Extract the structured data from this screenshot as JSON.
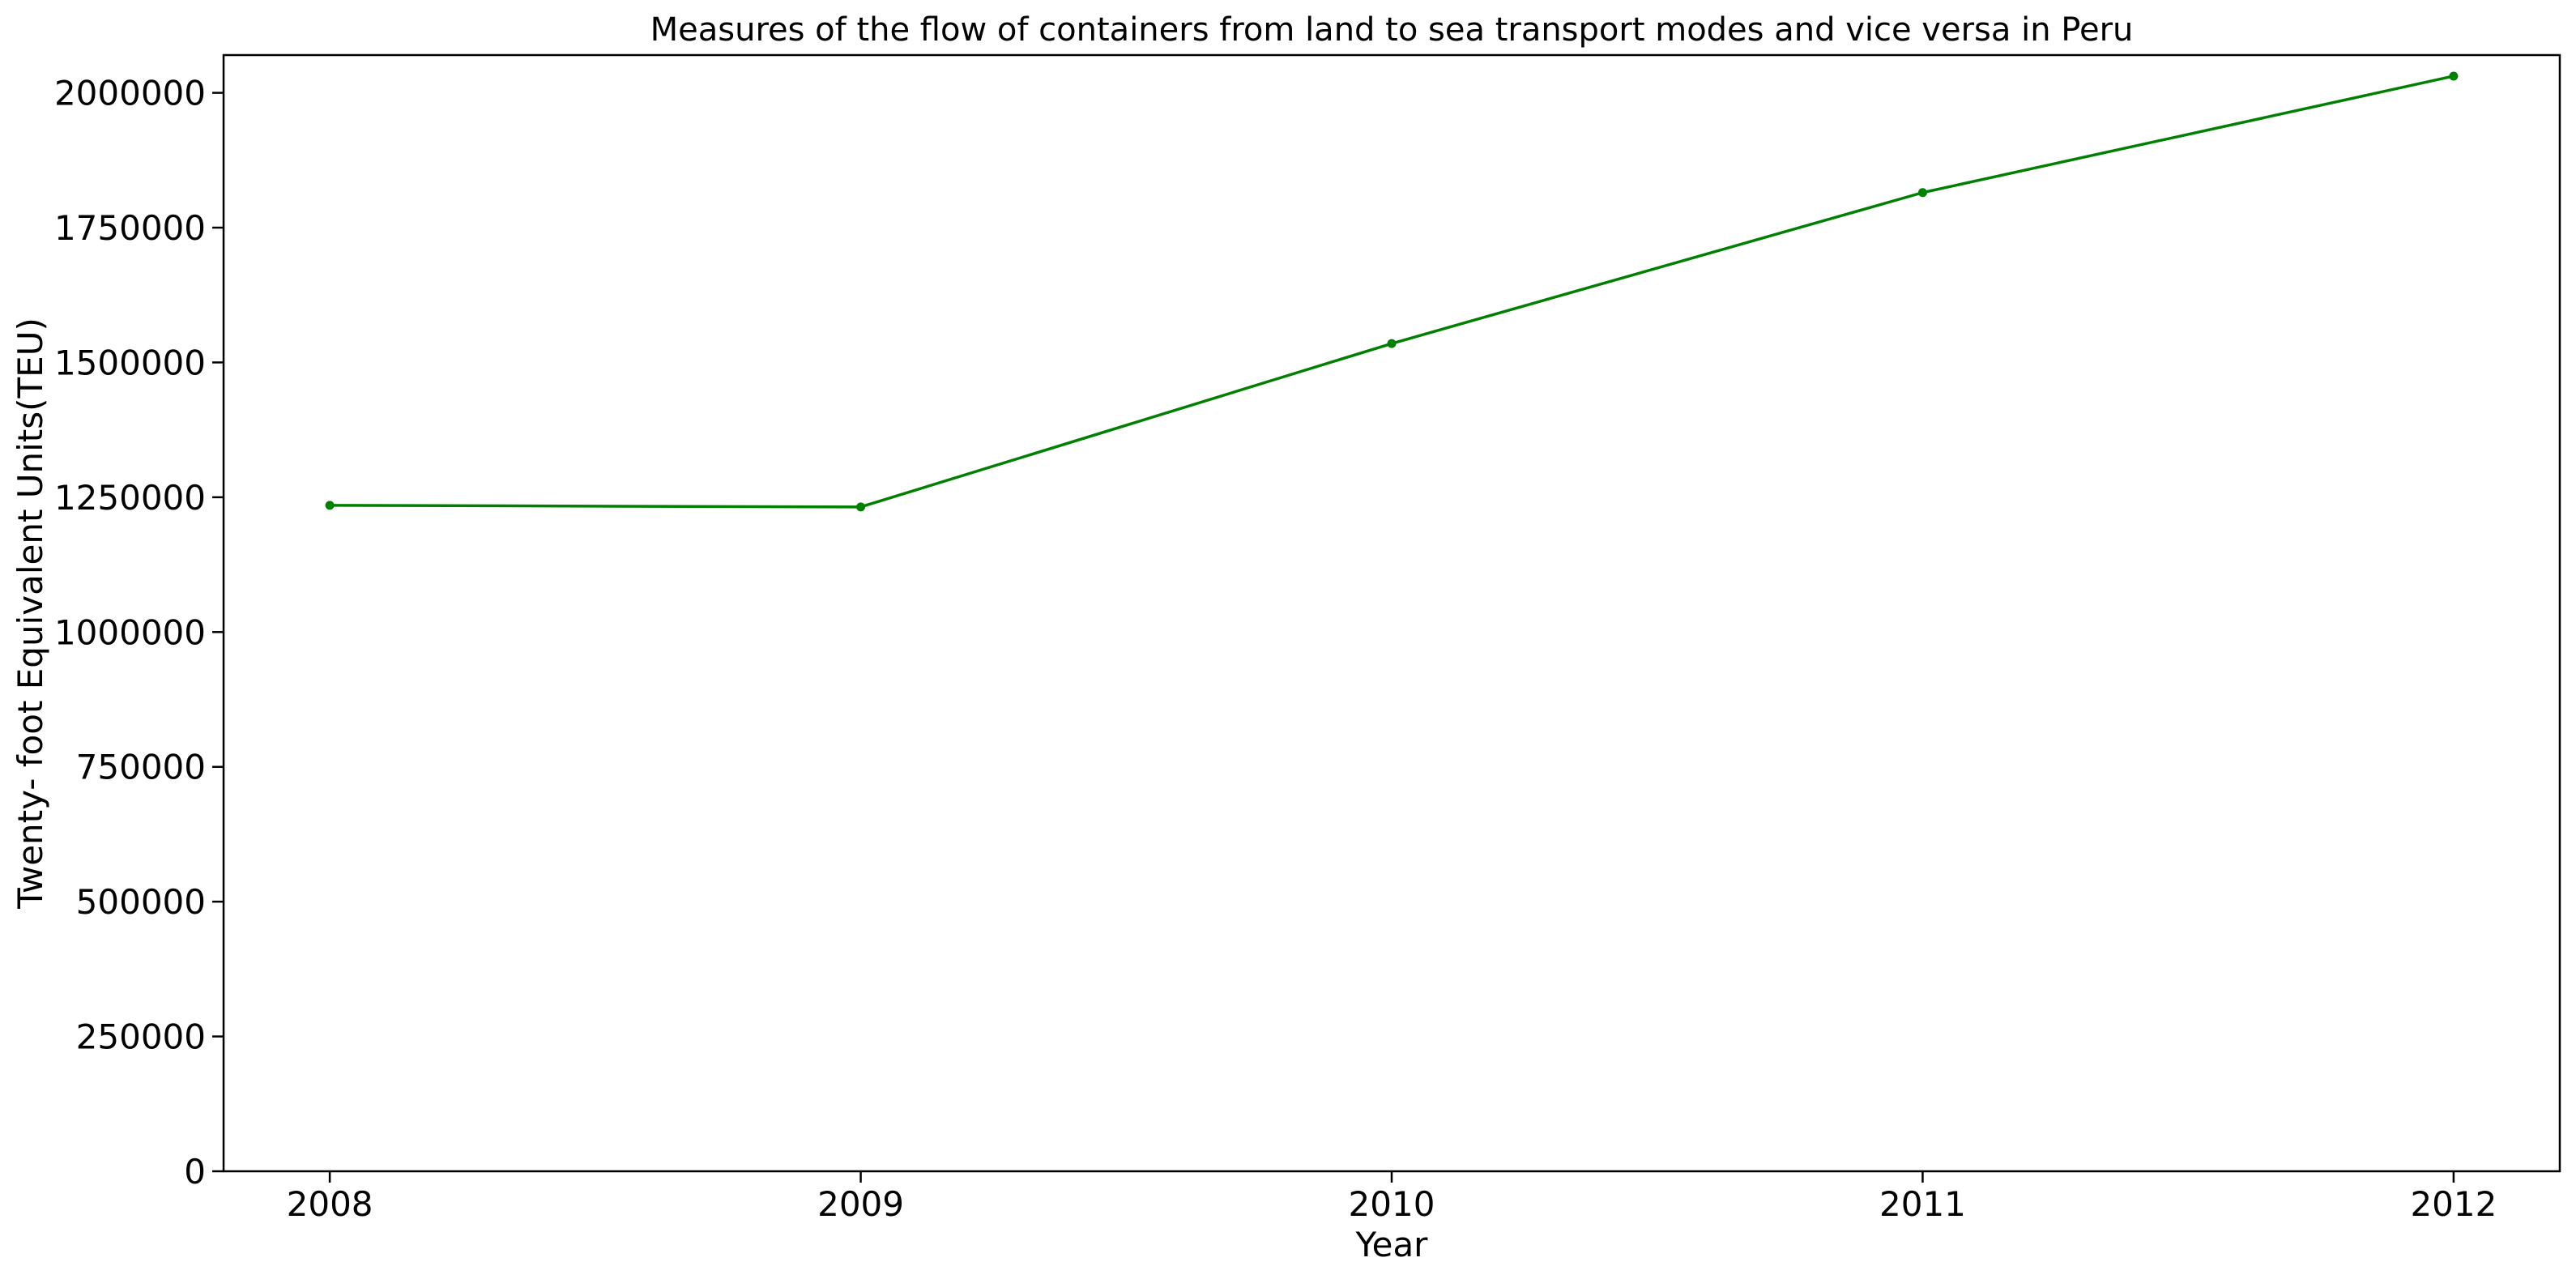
{
  "chart_data": {
    "type": "line",
    "title": "Measures of the flow of containers from land to sea transport modes and vice versa in Peru",
    "xlabel": "Year",
    "ylabel": "Twenty- foot Equivalent Units(TEU)",
    "x": [
      "2008",
      "2009",
      "2010",
      "2011",
      "2012"
    ],
    "series": [
      {
        "color": "#008000",
        "values": [
          1235000,
          1232000,
          1535000,
          1815000,
          2031000
        ]
      }
    ],
    "xlim": [
      2007.8,
      2012.2
    ],
    "ylim": [
      0,
      2070000
    ],
    "y_ticks": [
      0,
      250000,
      500000,
      750000,
      1000000,
      1250000,
      1500000,
      1750000,
      2000000
    ],
    "y_tick_labels": [
      "0",
      "250000",
      "500000",
      "750000",
      "1000000",
      "1250000",
      "1500000",
      "1750000",
      "2000000"
    ],
    "x_ticks": [
      2008,
      2009,
      2010,
      2011,
      2012
    ],
    "x_tick_labels": [
      "2008",
      "2009",
      "2010",
      "2011",
      "2012"
    ],
    "grid": false,
    "legend": "none",
    "marker": "dot"
  }
}
